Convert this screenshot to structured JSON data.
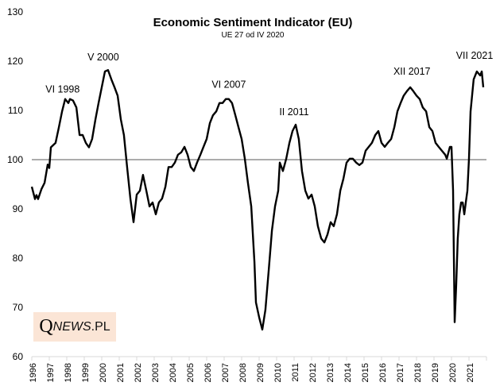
{
  "chart_data": {
    "type": "line",
    "title": "Economic Sentiment Indicator (EU)",
    "subtitle": "UE 27 od IV 2020",
    "xlabel": "",
    "ylabel": "",
    "xlim": [
      1996,
      2022
    ],
    "ylim": [
      60,
      130
    ],
    "yticks": [
      60,
      70,
      80,
      90,
      100,
      110,
      120,
      130
    ],
    "xticks": [
      "1996",
      "1997",
      "1998",
      "1999",
      "2000",
      "2001",
      "2002",
      "2003",
      "2004",
      "2005",
      "2006",
      "2007",
      "2008",
      "2009",
      "2010",
      "2011",
      "2012",
      "2013",
      "2014",
      "2015",
      "2016",
      "2017",
      "2018",
      "2019",
      "2020",
      "2021"
    ],
    "grid": false,
    "reference_line": 100,
    "line_color": "#000000",
    "reference_color": "#595959",
    "annotations": [
      {
        "text": "VI 1998",
        "x": 1998.4,
        "y": 112.3
      },
      {
        "text": "V 2000",
        "x": 2000.36,
        "y": 118.2
      },
      {
        "text": "VI 2007",
        "x": 2007.45,
        "y": 112.3
      },
      {
        "text": "II 2011",
        "x": 2011.09,
        "y": 107.1
      },
      {
        "text": "XII 2017",
        "x": 2017.92,
        "y": 114.7
      },
      {
        "text": "VII 2021",
        "x": 2021.5,
        "y": 117.9
      }
    ],
    "series": [
      {
        "values": [
          [
            1996.0,
            94.5
          ],
          [
            1996.18,
            92.0
          ],
          [
            1996.27,
            92.8
          ],
          [
            1996.36,
            92.0
          ],
          [
            1996.55,
            94.0
          ],
          [
            1996.73,
            95.3
          ],
          [
            1996.91,
            99.0
          ],
          [
            1997.0,
            98.3
          ],
          [
            1997.09,
            102.5
          ],
          [
            1997.36,
            103.4
          ],
          [
            1997.55,
            106.6
          ],
          [
            1997.73,
            109.8
          ],
          [
            1997.91,
            112.3
          ],
          [
            1998.09,
            111.5
          ],
          [
            1998.18,
            112.3
          ],
          [
            1998.36,
            112.0
          ],
          [
            1998.55,
            110.6
          ],
          [
            1998.73,
            105.0
          ],
          [
            1998.91,
            105.0
          ],
          [
            1999.09,
            103.4
          ],
          [
            1999.27,
            102.5
          ],
          [
            1999.45,
            104.2
          ],
          [
            1999.64,
            108.2
          ],
          [
            1999.82,
            111.5
          ],
          [
            2000.0,
            114.7
          ],
          [
            2000.18,
            117.9
          ],
          [
            2000.36,
            118.2
          ],
          [
            2000.55,
            116.3
          ],
          [
            2000.73,
            114.7
          ],
          [
            2000.91,
            113.0
          ],
          [
            2001.09,
            108.2
          ],
          [
            2001.27,
            105.0
          ],
          [
            2001.45,
            98.5
          ],
          [
            2001.64,
            92.0
          ],
          [
            2001.82,
            87.3
          ],
          [
            2002.0,
            92.9
          ],
          [
            2002.18,
            93.7
          ],
          [
            2002.36,
            96.9
          ],
          [
            2002.55,
            93.7
          ],
          [
            2002.73,
            90.5
          ],
          [
            2002.91,
            91.3
          ],
          [
            2003.09,
            88.9
          ],
          [
            2003.27,
            91.3
          ],
          [
            2003.45,
            92.1
          ],
          [
            2003.64,
            94.5
          ],
          [
            2003.82,
            98.5
          ],
          [
            2004.0,
            98.5
          ],
          [
            2004.18,
            99.4
          ],
          [
            2004.36,
            101.0
          ],
          [
            2004.55,
            101.5
          ],
          [
            2004.73,
            102.6
          ],
          [
            2004.91,
            101.0
          ],
          [
            2005.09,
            98.5
          ],
          [
            2005.27,
            97.7
          ],
          [
            2005.45,
            99.4
          ],
          [
            2005.64,
            101.0
          ],
          [
            2005.82,
            102.6
          ],
          [
            2006.0,
            104.2
          ],
          [
            2006.18,
            107.4
          ],
          [
            2006.36,
            109.0
          ],
          [
            2006.55,
            109.8
          ],
          [
            2006.73,
            111.5
          ],
          [
            2006.91,
            111.5
          ],
          [
            2007.09,
            112.3
          ],
          [
            2007.27,
            112.3
          ],
          [
            2007.45,
            111.5
          ],
          [
            2007.64,
            109.0
          ],
          [
            2007.82,
            106.6
          ],
          [
            2008.0,
            104.2
          ],
          [
            2008.18,
            100.2
          ],
          [
            2008.36,
            95.3
          ],
          [
            2008.55,
            90.5
          ],
          [
            2008.73,
            79.2
          ],
          [
            2008.82,
            71.0
          ],
          [
            2009.0,
            68.0
          ],
          [
            2009.18,
            65.5
          ],
          [
            2009.36,
            69.5
          ],
          [
            2009.55,
            77.6
          ],
          [
            2009.73,
            85.6
          ],
          [
            2009.91,
            90.5
          ],
          [
            2010.09,
            93.7
          ],
          [
            2010.18,
            99.4
          ],
          [
            2010.36,
            97.7
          ],
          [
            2010.55,
            100.2
          ],
          [
            2010.73,
            103.4
          ],
          [
            2010.91,
            105.8
          ],
          [
            2011.09,
            107.1
          ],
          [
            2011.27,
            104.2
          ],
          [
            2011.45,
            97.7
          ],
          [
            2011.64,
            93.7
          ],
          [
            2011.82,
            92.1
          ],
          [
            2012.0,
            92.9
          ],
          [
            2012.18,
            90.5
          ],
          [
            2012.36,
            86.5
          ],
          [
            2012.55,
            84.0
          ],
          [
            2012.73,
            83.2
          ],
          [
            2012.91,
            84.8
          ],
          [
            2013.09,
            87.3
          ],
          [
            2013.27,
            86.5
          ],
          [
            2013.45,
            88.9
          ],
          [
            2013.64,
            93.7
          ],
          [
            2013.82,
            96.1
          ],
          [
            2014.0,
            99.4
          ],
          [
            2014.18,
            100.2
          ],
          [
            2014.36,
            100.2
          ],
          [
            2014.55,
            99.4
          ],
          [
            2014.73,
            98.9
          ],
          [
            2014.91,
            99.4
          ],
          [
            2015.09,
            101.8
          ],
          [
            2015.27,
            102.6
          ],
          [
            2015.45,
            103.4
          ],
          [
            2015.64,
            105.0
          ],
          [
            2015.82,
            105.8
          ],
          [
            2016.0,
            103.4
          ],
          [
            2016.18,
            102.6
          ],
          [
            2016.36,
            103.4
          ],
          [
            2016.55,
            104.2
          ],
          [
            2016.73,
            106.6
          ],
          [
            2016.91,
            109.8
          ],
          [
            2017.09,
            111.5
          ],
          [
            2017.27,
            113.0
          ],
          [
            2017.45,
            113.9
          ],
          [
            2017.64,
            114.7
          ],
          [
            2017.82,
            113.9
          ],
          [
            2018.0,
            113.0
          ],
          [
            2018.18,
            112.3
          ],
          [
            2018.36,
            110.6
          ],
          [
            2018.55,
            109.8
          ],
          [
            2018.73,
            106.6
          ],
          [
            2018.91,
            105.8
          ],
          [
            2019.09,
            103.4
          ],
          [
            2019.27,
            102.6
          ],
          [
            2019.45,
            101.8
          ],
          [
            2019.64,
            101.0
          ],
          [
            2019.73,
            100.2
          ],
          [
            2019.91,
            102.6
          ],
          [
            2020.0,
            102.6
          ],
          [
            2020.09,
            93.7
          ],
          [
            2020.18,
            67.0
          ],
          [
            2020.27,
            74.4
          ],
          [
            2020.36,
            84.0
          ],
          [
            2020.45,
            88.9
          ],
          [
            2020.55,
            91.3
          ],
          [
            2020.64,
            91.3
          ],
          [
            2020.73,
            88.9
          ],
          [
            2020.82,
            91.3
          ],
          [
            2020.91,
            93.7
          ],
          [
            2021.0,
            100.2
          ],
          [
            2021.09,
            109.8
          ],
          [
            2021.27,
            116.3
          ],
          [
            2021.45,
            117.9
          ],
          [
            2021.64,
            117.1
          ],
          [
            2021.73,
            117.9
          ],
          [
            2021.82,
            114.7
          ]
        ]
      }
    ]
  },
  "logo": {
    "text": "QNEWS.PL",
    "q": "Q",
    "news": "NEWS",
    "pl": ".PL"
  }
}
